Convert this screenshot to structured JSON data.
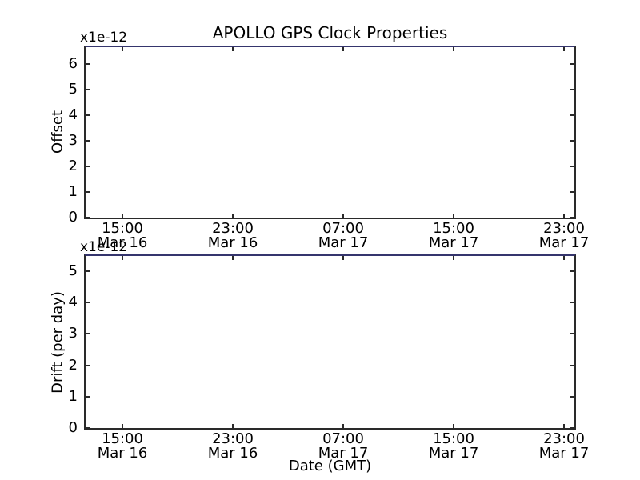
{
  "title": "APOLLO GPS Clock Properties",
  "x_axis": {
    "label": "Date (GMT)",
    "ticks": [
      {
        "time": "15:00",
        "date": "Mar 16"
      },
      {
        "time": "23:00",
        "date": "Mar 16"
      },
      {
        "time": "07:00",
        "date": "Mar 17"
      },
      {
        "time": "15:00",
        "date": "Mar 17"
      },
      {
        "time": "23:00",
        "date": "Mar 17"
      }
    ]
  },
  "plots": [
    {
      "name": "offset",
      "ylabel": "Offset",
      "scale_label": "x1e-12",
      "yticks": [
        "0",
        "1",
        "2",
        "3",
        "4",
        "5",
        "6"
      ]
    },
    {
      "name": "drift",
      "ylabel": "Drift (per day)",
      "scale_label": "x1e-12",
      "yticks": [
        "0",
        "1",
        "2",
        "3",
        "4",
        "5"
      ]
    }
  ],
  "colors": {
    "background": "#ffffff",
    "frame": "#2a2a2a",
    "top_edge_line": "#35356d",
    "text": "#000000"
  },
  "chart_data": [
    {
      "type": "line",
      "title": "APOLLO GPS Clock Properties",
      "xlabel": "",
      "ylabel": "Offset",
      "y_unit_multiplier": "x1e-12",
      "x_tick_labels": [
        "15:00 Mar 16",
        "23:00 Mar 16",
        "07:00 Mar 17",
        "15:00 Mar 17",
        "23:00 Mar 17"
      ],
      "y_ticks": [
        0,
        1,
        2,
        3,
        4,
        5,
        6
      ],
      "ylim": [
        0,
        6.8
      ],
      "series": [],
      "grid": false,
      "legend": false
    },
    {
      "type": "line",
      "title": "",
      "xlabel": "Date (GMT)",
      "ylabel": "Drift (per day)",
      "y_unit_multiplier": "x1e-12",
      "x_tick_labels": [
        "15:00 Mar 16",
        "23:00 Mar 16",
        "07:00 Mar 17",
        "15:00 Mar 17",
        "23:00 Mar 17"
      ],
      "y_ticks": [
        0,
        1,
        2,
        3,
        4,
        5
      ],
      "ylim": [
        0,
        5.6
      ],
      "series": [],
      "grid": false,
      "legend": false
    }
  ]
}
